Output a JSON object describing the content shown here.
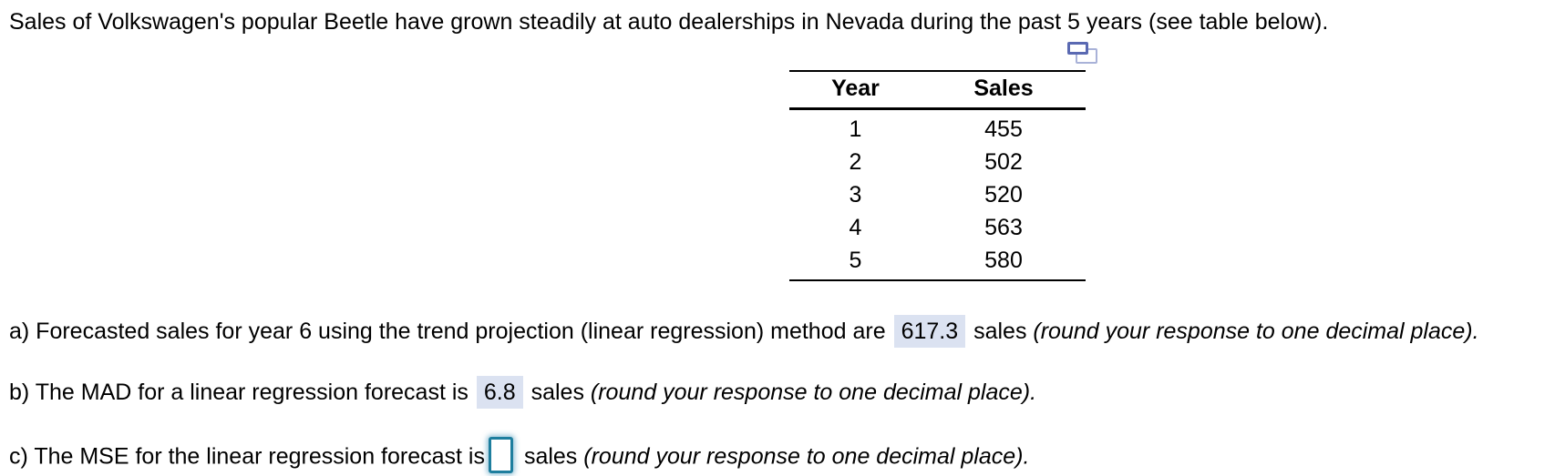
{
  "intro": "Sales of Volkswagen's popular Beetle have grown steadily at auto dealerships in Nevada during the past 5 years (see table below).",
  "table": {
    "icon": "popup-window-icon",
    "headers": [
      "Year",
      "Sales"
    ],
    "rows": [
      [
        "1",
        "455"
      ],
      [
        "2",
        "502"
      ],
      [
        "3",
        "520"
      ],
      [
        "4",
        "563"
      ],
      [
        "5",
        "580"
      ]
    ]
  },
  "questions": {
    "a": {
      "prefix": "a) Forecasted sales for year 6 using the trend projection (linear regression) method are",
      "answer": "617.3",
      "unit": "sales",
      "note": "(round your response to one decimal place)."
    },
    "b": {
      "prefix": "b) The MAD for a linear regression forecast is",
      "answer": "6.8",
      "unit": "sales",
      "note": "(round your response to one decimal place)."
    },
    "c": {
      "prefix": "c) The MSE for the linear regression forecast is",
      "answer": "",
      "unit": "sales",
      "note": "(round your response to one decimal place)."
    }
  },
  "colors": {
    "answer_highlight": "#dbe2f1",
    "input_border": "#1e7e9e",
    "icon_front": "#5a69b2",
    "icon_back": "#a9b2d8",
    "text": "#000000",
    "background": "#ffffff"
  }
}
